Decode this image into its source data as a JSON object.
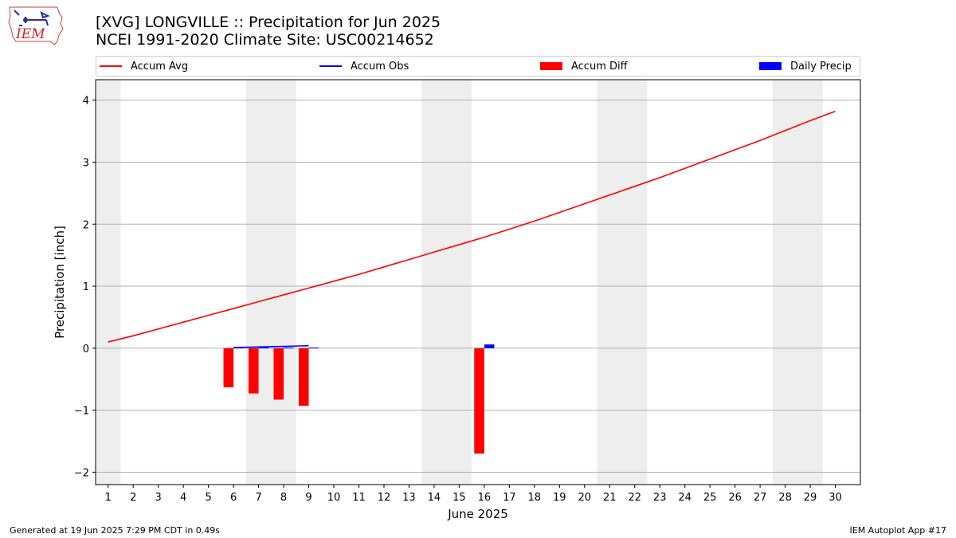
{
  "header": {
    "title": "[XVG] LONGVILLE :: Precipitation for Jun 2025",
    "subtitle": "NCEI 1991-2020 Climate Site: USC00214652",
    "logo_text": "IEM"
  },
  "legend": {
    "items": [
      {
        "label": "Accum Avg",
        "color": "#ff0000",
        "kind": "line"
      },
      {
        "label": "Accum Obs",
        "color": "#0000ff",
        "kind": "line"
      },
      {
        "label": "Accum Diff",
        "color": "#ff0000",
        "kind": "box"
      },
      {
        "label": "Daily Precip",
        "color": "#0000ff",
        "kind": "box"
      }
    ]
  },
  "footer": {
    "left": "Generated at 19 Jun 2025 7:29 PM CDT in 0.49s",
    "right": "IEM Autoplot App #17"
  },
  "chart_data": {
    "type": "bar",
    "title": "[XVG] LONGVILLE :: Precipitation for Jun 2025",
    "subtitle": "NCEI 1991-2020 Climate Site: USC00214652",
    "xlabel": "June 2025",
    "ylabel": "Precipitation [inch]",
    "xlim": [
      0.5,
      31.0
    ],
    "ylim": [
      -2.2,
      4.33
    ],
    "x_ticks": [
      1,
      2,
      3,
      4,
      5,
      6,
      7,
      8,
      9,
      10,
      11,
      12,
      13,
      14,
      15,
      16,
      17,
      18,
      19,
      20,
      21,
      22,
      23,
      24,
      25,
      26,
      27,
      28,
      29,
      30
    ],
    "y_ticks": [
      -2,
      -1,
      0,
      1,
      2,
      3,
      4
    ],
    "y_tick_labels": [
      "−2",
      "−1",
      "0",
      "1",
      "2",
      "3",
      "4"
    ],
    "grid": "horizontal",
    "legend_position": "top",
    "weekend_shading": [
      [
        0.5,
        1.5
      ],
      [
        6.5,
        8.5
      ],
      [
        13.5,
        15.5
      ],
      [
        20.5,
        22.5
      ],
      [
        27.5,
        29.5
      ]
    ],
    "series": [
      {
        "name": "Accum Avg",
        "kind": "line",
        "color": "#ff0000",
        "x": [
          1,
          2,
          3,
          4,
          5,
          6,
          7,
          8,
          9,
          10,
          11,
          12,
          13,
          14,
          15,
          16,
          17,
          18,
          19,
          20,
          21,
          22,
          23,
          24,
          25,
          26,
          27,
          28,
          29,
          30
        ],
        "values": [
          0.1,
          0.2,
          0.31,
          0.42,
          0.53,
          0.64,
          0.75,
          0.86,
          0.97,
          1.08,
          1.19,
          1.31,
          1.43,
          1.55,
          1.67,
          1.79,
          1.92,
          2.05,
          2.19,
          2.33,
          2.47,
          2.61,
          2.75,
          2.9,
          3.05,
          3.2,
          3.35,
          3.51,
          3.67,
          3.82
        ]
      },
      {
        "name": "Accum Obs",
        "kind": "line",
        "color": "#0000ff",
        "x": [
          6,
          7,
          8,
          9
        ],
        "values": [
          0.01,
          0.02,
          0.03,
          0.04
        ]
      },
      {
        "name": "Accum Diff",
        "kind": "bar",
        "color": "#ff0000",
        "x": [
          6,
          7,
          8,
          9,
          16
        ],
        "values": [
          -0.63,
          -0.73,
          -0.83,
          -0.93,
          -1.7
        ]
      },
      {
        "name": "Daily Precip",
        "kind": "bar",
        "color": "#0000ff",
        "x": [
          6,
          7,
          8,
          9,
          16
        ],
        "values": [
          0.01,
          0.01,
          0.01,
          0.01,
          0.06
        ]
      }
    ]
  }
}
